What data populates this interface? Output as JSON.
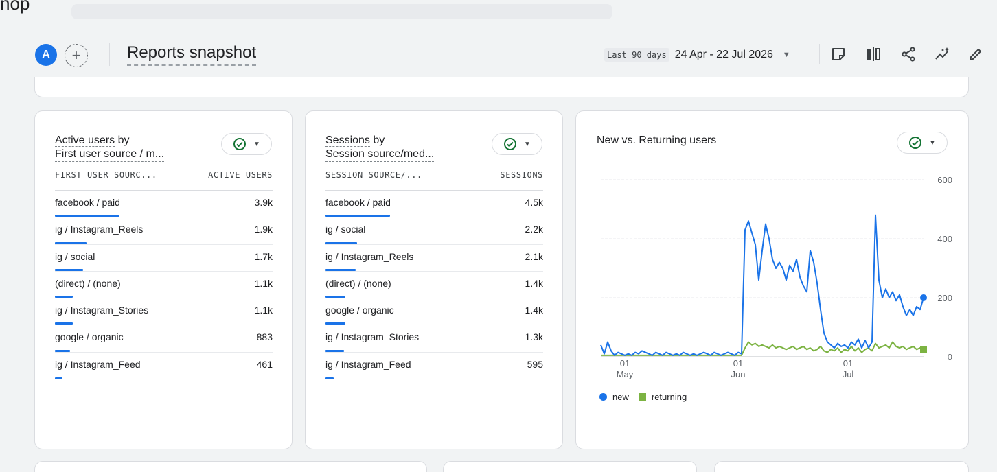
{
  "top_fragment": "nop",
  "header": {
    "avatar_letter": "A",
    "add_compare_label": "+",
    "title": "Reports snapshot",
    "date_chip": "Last 90 days",
    "date_range": "24 Apr - 22 Jul 2026",
    "icons": [
      "share-annotation-icon",
      "compare-icon",
      "share-icon",
      "insights-icon",
      "edit-icon"
    ]
  },
  "cards": [
    {
      "title_line1_ul": "Active users",
      "title_line1_rest": " by",
      "title_line2": "First user source / m...",
      "col_left": "FIRST USER SOURC...",
      "col_right": "ACTIVE USERS",
      "rows": [
        {
          "label": "facebook / paid",
          "value": "3.9k",
          "fraction": 1.0
        },
        {
          "label": "ig / Instagram_Reels",
          "value": "1.9k",
          "fraction": 0.49
        },
        {
          "label": "ig / social",
          "value": "1.7k",
          "fraction": 0.44
        },
        {
          "label": "(direct) / (none)",
          "value": "1.1k",
          "fraction": 0.28
        },
        {
          "label": "ig / Instagram_Stories",
          "value": "1.1k",
          "fraction": 0.28
        },
        {
          "label": "google / organic",
          "value": "883",
          "fraction": 0.23
        },
        {
          "label": "ig / Instagram_Feed",
          "value": "461",
          "fraction": 0.12
        }
      ]
    },
    {
      "title_line1_ul": "Sessions",
      "title_line1_rest": " by",
      "title_line2": "Session source/med...",
      "col_left": "SESSION SOURCE/...",
      "col_right": "SESSIONS",
      "rows": [
        {
          "label": "facebook / paid",
          "value": "4.5k",
          "fraction": 1.0
        },
        {
          "label": "ig / social",
          "value": "2.2k",
          "fraction": 0.49
        },
        {
          "label": "ig / Instagram_Reels",
          "value": "2.1k",
          "fraction": 0.47
        },
        {
          "label": "(direct) / (none)",
          "value": "1.4k",
          "fraction": 0.31
        },
        {
          "label": "google / organic",
          "value": "1.4k",
          "fraction": 0.31
        },
        {
          "label": "ig / Instagram_Stories",
          "value": "1.3k",
          "fraction": 0.29
        },
        {
          "label": "ig / Instagram_Feed",
          "value": "595",
          "fraction": 0.13
        }
      ]
    }
  ],
  "chart_card": {
    "title": "New vs. Returning users",
    "legend": [
      {
        "label": "new",
        "color": "#1a73e8"
      },
      {
        "label": "returning",
        "color": "#7cb342"
      }
    ]
  },
  "chart_data": {
    "type": "line",
    "title": "New vs. Returning users",
    "xlabel": "",
    "ylabel": "",
    "ylim": [
      0,
      600
    ],
    "yticks": [
      "0",
      "200",
      "400",
      "600"
    ],
    "xticks": [
      {
        "day": "01",
        "month": "May"
      },
      {
        "day": "01",
        "month": "Jun"
      },
      {
        "day": "01",
        "month": "Jul"
      }
    ],
    "grid": true,
    "legend_position": "bottom-left",
    "series": [
      {
        "name": "new",
        "color": "#1a73e8",
        "values": [
          40,
          10,
          50,
          20,
          5,
          15,
          10,
          5,
          10,
          5,
          15,
          10,
          20,
          15,
          10,
          5,
          15,
          10,
          5,
          15,
          10,
          5,
          10,
          5,
          15,
          10,
          5,
          10,
          5,
          10,
          15,
          10,
          5,
          15,
          10,
          5,
          10,
          15,
          10,
          5,
          15,
          10,
          430,
          460,
          420,
          380,
          260,
          360,
          450,
          400,
          330,
          300,
          320,
          300,
          260,
          310,
          290,
          330,
          270,
          240,
          220,
          360,
          320,
          250,
          160,
          80,
          50,
          40,
          30,
          45,
          35,
          40,
          30,
          50,
          40,
          60,
          30,
          55,
          30,
          50,
          480,
          260,
          200,
          230,
          200,
          220,
          190,
          210,
          170,
          140,
          160,
          140,
          170,
          160,
          200
        ],
        "note_x_start": "24 Apr",
        "note_x_end": "22 Jul"
      },
      {
        "name": "returning",
        "color": "#7cb342",
        "values": [
          5,
          5,
          5,
          5,
          5,
          5,
          5,
          5,
          5,
          5,
          5,
          5,
          5,
          5,
          5,
          5,
          5,
          5,
          5,
          5,
          5,
          5,
          5,
          5,
          5,
          5,
          5,
          5,
          5,
          5,
          5,
          5,
          5,
          5,
          5,
          5,
          5,
          5,
          5,
          5,
          5,
          5,
          30,
          50,
          40,
          45,
          35,
          40,
          35,
          30,
          40,
          30,
          35,
          30,
          25,
          30,
          35,
          25,
          30,
          35,
          25,
          30,
          20,
          25,
          35,
          20,
          15,
          25,
          20,
          30,
          15,
          25,
          20,
          35,
          20,
          30,
          15,
          25,
          30,
          20,
          45,
          30,
          35,
          40,
          30,
          50,
          35,
          30,
          35,
          25,
          30,
          35,
          25,
          30,
          25
        ]
      }
    ]
  }
}
